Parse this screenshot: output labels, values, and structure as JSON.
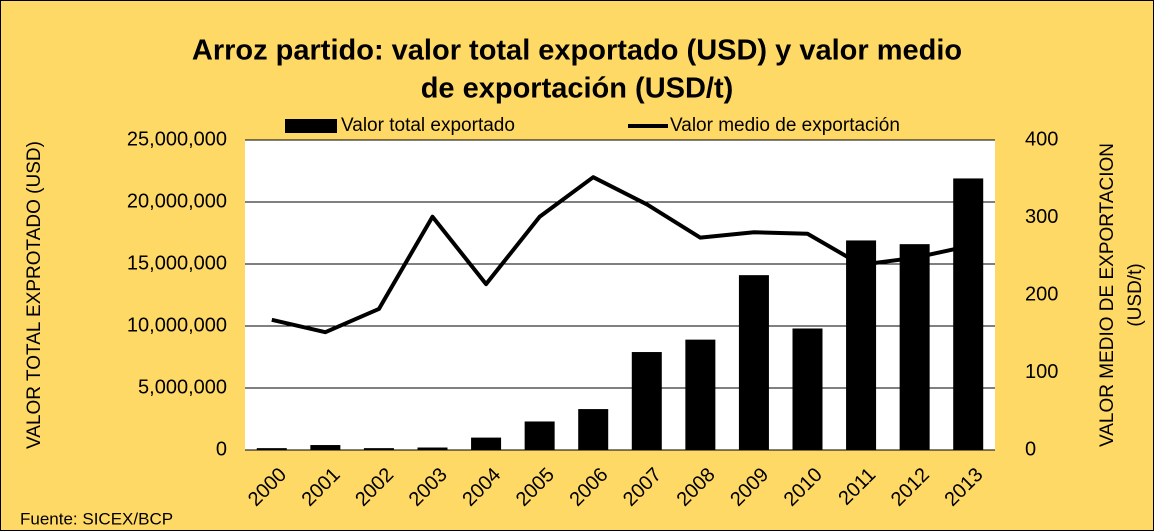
{
  "chart_data": {
    "type": "bar",
    "title": [
      "Arroz partido: valor total exportado (USD) y valor medio",
      "de exportación (USD/t)"
    ],
    "ylabel": "VALOR TOTAL EXPROTADO (USD)",
    "y2label": [
      "VALOR MEDIO DE EXPORTACION",
      "(USD/t)"
    ],
    "source": "Fuente: SICEX/BCP",
    "categories": [
      "2000",
      "2001",
      "2002",
      "2003",
      "2004",
      "2005",
      "2006",
      "2007",
      "2008",
      "2009",
      "2010",
      "2011",
      "2012",
      "2013"
    ],
    "series": [
      {
        "name": "Valor total exportado",
        "type": "bar",
        "color": "#000000",
        "values": [
          150000,
          400000,
          150000,
          200000,
          1000000,
          2300000,
          3300000,
          7900000,
          8900000,
          14100000,
          9800000,
          16900000,
          16600000,
          21900000
        ]
      },
      {
        "name": "Valor medio de exportación",
        "type": "line",
        "axis": "y2",
        "color": "#000000",
        "values": [
          168,
          152,
          182,
          301,
          214,
          301,
          352,
          317,
          274,
          281,
          279,
          239,
          248,
          263
        ]
      }
    ],
    "ylim": [
      0,
      25000000
    ],
    "yticks": [
      0,
      {
        "value": 5000000,
        "label": "5,000,000"
      },
      {
        "value": 10000000,
        "label": "10,000,000"
      },
      {
        "value": 15000000,
        "label": "15,000,000"
      },
      {
        "value": 20000000,
        "label": "20,000,000"
      },
      {
        "value": 25000000,
        "label": "25,000,000"
      }
    ],
    "y2lim": [
      0,
      400
    ],
    "y2ticks": [
      0,
      100,
      200,
      300,
      400
    ],
    "grid": true,
    "legend": "top",
    "background": "#ffd966"
  }
}
